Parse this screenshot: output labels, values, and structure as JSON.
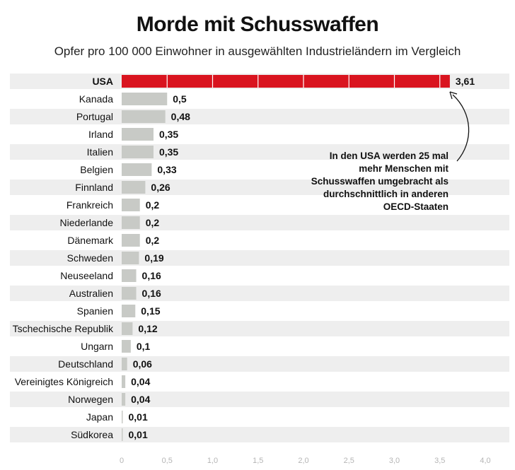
{
  "chart_data": {
    "type": "bar",
    "orientation": "horizontal",
    "title": "Morde mit Schusswaffen",
    "subtitle": "Opfer pro 100 000 Einwohner in ausgewählten Industrieländern im Vergleich",
    "categories": [
      "USA",
      "Kanada",
      "Portugal",
      "Irland",
      "Italien",
      "Belgien",
      "Finnland",
      "Frankreich",
      "Niederlande",
      "Dänemark",
      "Schweden",
      "Neuseeland",
      "Australien",
      "Spanien",
      "Tschechische Republik",
      "Ungarn",
      "Deutschland",
      "Vereinigtes Königreich",
      "Norwegen",
      "Japan",
      "Südkorea"
    ],
    "values": [
      3.61,
      0.5,
      0.48,
      0.35,
      0.35,
      0.33,
      0.26,
      0.2,
      0.2,
      0.2,
      0.19,
      0.16,
      0.16,
      0.15,
      0.12,
      0.1,
      0.06,
      0.04,
      0.04,
      0.01,
      0.01
    ],
    "value_labels": [
      "3,61",
      "0,5",
      "0,48",
      "0,35",
      "0,35",
      "0,33",
      "0,26",
      "0,2",
      "0,2",
      "0,2",
      "0,19",
      "0,16",
      "0,16",
      "0,15",
      "0,12",
      "0,1",
      "0,06",
      "0,04",
      "0,04",
      "0,01",
      "0,01"
    ],
    "xlim": [
      0,
      4.0
    ],
    "xticks": [
      0,
      0.5,
      1.0,
      1.5,
      2.0,
      2.5,
      3.0,
      3.5,
      4.0
    ],
    "xtick_labels": [
      "0",
      "0,5",
      "1,0",
      "1,5",
      "2,0",
      "2,5",
      "3,0",
      "3,5",
      "4,0"
    ],
    "highlight_category": "USA",
    "annotation": "In den USA werden 25 mal mehr Menschen mit Schusswaffen umgebracht als durchschnittlich in anderen OECD-Staaten",
    "colors": {
      "highlight_bar": "#d9141f",
      "bar": "#c8cac6",
      "row_band": "#eeeeee",
      "tick_label": "#b5b5b5",
      "text": "#111111"
    },
    "grid": false,
    "legend": "none"
  }
}
